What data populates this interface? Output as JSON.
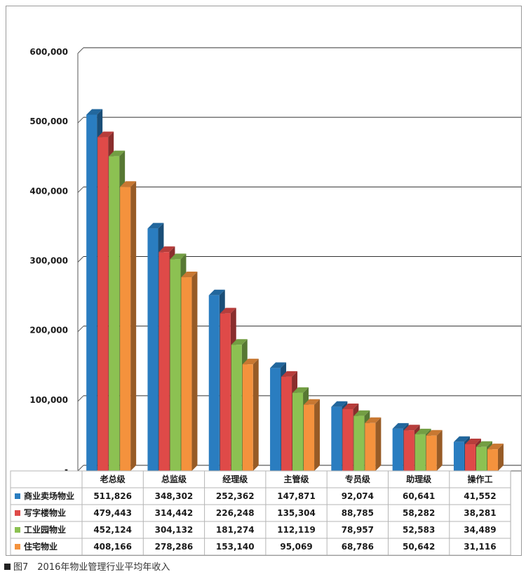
{
  "chart_data": {
    "type": "bar",
    "categories": [
      "老总级",
      "总监级",
      "经理级",
      "主管级",
      "专员级",
      "助理级",
      "操作工"
    ],
    "series": [
      {
        "name": "商业卖场物业",
        "color": "#2a7dc0",
        "values": [
          511826,
          348302,
          252362,
          147871,
          92074,
          60641,
          41552
        ],
        "labels": [
          "511,826",
          "348,302",
          "252,362",
          "147,871",
          "92,074",
          "60,641",
          "41,552"
        ]
      },
      {
        "name": "写字楼物业",
        "color": "#df4a48",
        "values": [
          479443,
          314442,
          226248,
          135304,
          88785,
          58282,
          38281
        ],
        "labels": [
          "479,443",
          "314,442",
          "226,248",
          "135,304",
          "88,785",
          "58,282",
          "38,281"
        ]
      },
      {
        "name": "工业园物业",
        "color": "#8cc152",
        "values": [
          452124,
          304132,
          181274,
          112119,
          78957,
          52583,
          34489
        ],
        "labels": [
          "452,124",
          "304,132",
          "181,274",
          "112,119",
          "78,957",
          "52,583",
          "34,489"
        ]
      },
      {
        "name": "住宅物业",
        "color": "#f4923d",
        "values": [
          408166,
          278286,
          153140,
          95069,
          68786,
          50642,
          31116
        ],
        "labels": [
          "408,166",
          "278,286",
          "153,140",
          "95,069",
          "68,786",
          "50,642",
          "31,116"
        ]
      }
    ],
    "ylim": [
      0,
      600000
    ],
    "yticks": [
      0,
      100000,
      200000,
      300000,
      400000,
      500000,
      600000
    ],
    "ytick_labels": [
      "-",
      "100,000",
      "200,000",
      "300,000",
      "400,000",
      "500,000",
      "600,000"
    ],
    "grid": true,
    "data_table": true,
    "style": "3d-clustered-column"
  },
  "caption": {
    "text": "图7　2016年物业管理行业平均年收入"
  }
}
